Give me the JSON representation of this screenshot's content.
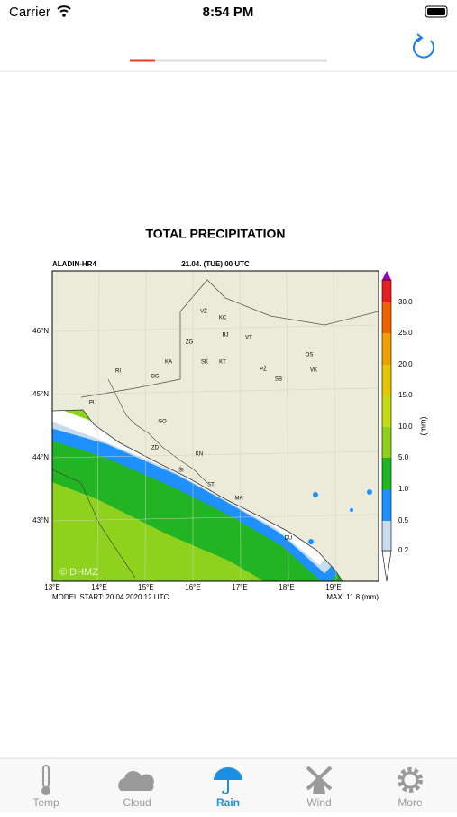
{
  "status_bar": {
    "carrier": "Carrier",
    "time": "8:54 PM"
  },
  "map": {
    "title": "TOTAL PRECIPITATION",
    "model": "ALADIN-HR4",
    "valid": "21.04. (TUE) 00 UTC",
    "lat_labels": [
      "46°N",
      "45°N",
      "44°N",
      "43°N"
    ],
    "lon_labels": [
      "13°E",
      "14°E",
      "15°E",
      "16°E",
      "17°E",
      "18°E",
      "19°E"
    ],
    "places": [
      "VŽ",
      "KC",
      "ZG",
      "BJ",
      "VT",
      "OS",
      "KA",
      "SK",
      "KT",
      "VK",
      "PŽ",
      "SB",
      "RI",
      "OG",
      "PU",
      "GO",
      "ZD",
      "KN",
      "ŠI",
      "ST",
      "MA",
      "DU"
    ],
    "colorbar_labels": [
      "0.2",
      "0.5",
      "1.0",
      "5.0",
      "10.0",
      "15.0",
      "20.0",
      "25.0",
      "30.0"
    ],
    "unit": "(mm)",
    "model_start": "MODEL START: 20.04.2020 12 UTC",
    "max": "MAX: 11.8 (mm)",
    "credit": "© DHMZ"
  },
  "tabs": [
    "Temp",
    "Cloud",
    "Rain",
    "Wind",
    "More"
  ]
}
